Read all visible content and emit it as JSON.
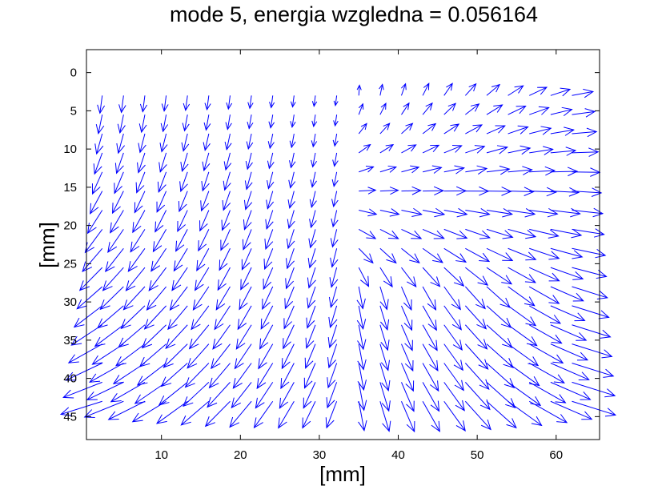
{
  "chart_data": {
    "type": "quiver",
    "title": "mode 5, energia wzgledna = 0.056164",
    "xlabel": "[mm]",
    "ylabel": "[mm]",
    "xlim": [
      0.5,
      65.5
    ],
    "ylim": [
      48,
      -3
    ],
    "y_reversed": true,
    "grid": false,
    "xticks": [
      10,
      20,
      30,
      40,
      50,
      60
    ],
    "yticks": [
      0,
      5,
      10,
      15,
      20,
      25,
      30,
      35,
      40,
      45
    ],
    "arrow_color": "#0000ff",
    "field": {
      "x_grid": [
        2.5,
        5.2,
        7.9,
        10.6,
        13.3,
        16.0,
        18.7,
        21.4,
        24.1,
        26.8,
        29.5,
        32.2,
        35.0,
        37.7,
        40.4,
        43.1,
        45.8,
        48.5,
        51.2,
        53.9,
        56.6,
        59.3,
        62.0
      ],
      "y_grid": [
        3.0,
        5.5,
        8.0,
        10.5,
        13.0,
        15.5,
        18.0,
        20.5,
        23.0,
        25.5,
        28.0,
        30.5,
        33.0,
        35.5,
        38.0,
        40.5,
        43.0
      ],
      "center_x": 33.7,
      "center_left_x": 33.5,
      "max_arrow_mm": 5.8,
      "arrow_head_mm": 1.2
    }
  }
}
